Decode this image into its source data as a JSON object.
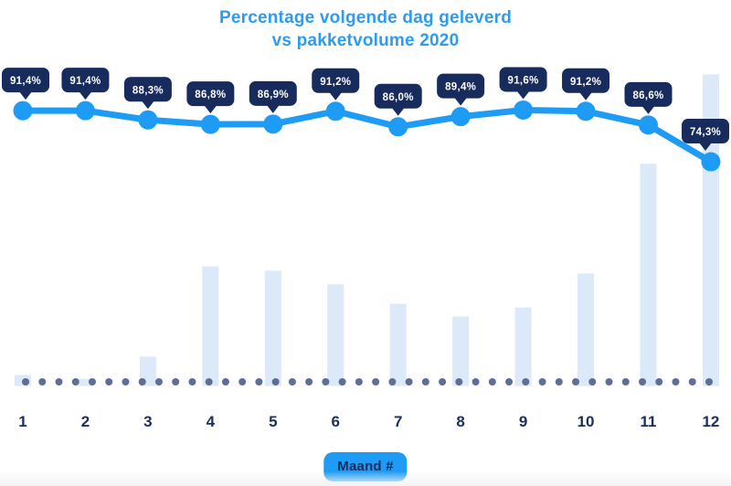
{
  "title_lines": [
    "Percentage volgende dag geleverd",
    "vs pakketvolume 2020"
  ],
  "chart_data": {
    "type": "combo",
    "title": "Percentage volgende dag geleverd vs pakketvolume 2020",
    "title_lines": [
      "Percentage volgende dag geleverd",
      "vs pakketvolume 2020"
    ],
    "categories": [
      "1",
      "2",
      "3",
      "4",
      "5",
      "6",
      "7",
      "8",
      "9",
      "10",
      "11",
      "12"
    ],
    "xlabel": "Maand #",
    "ylabel": "",
    "grid": false,
    "legend": "none",
    "series": [
      {
        "name": "Percentage volgende dag geleverd",
        "type": "line",
        "unit": "%",
        "axis_range": [
          0,
          100
        ],
        "values": [
          91.4,
          91.4,
          88.3,
          86.8,
          86.9,
          91.2,
          86.0,
          89.4,
          91.6,
          91.2,
          86.6,
          74.3
        ],
        "labels": [
          "91,4%",
          "91,4%",
          "88,3%",
          "86,8%",
          "86,9%",
          "91,2%",
          "86,0%",
          "89,4%",
          "91,6%",
          "91,2%",
          "86,6%",
          "74,3%"
        ],
        "color": "#1e9cf5",
        "badge_color": "#172b5d",
        "badge_text_color": "#ffffff"
      },
      {
        "name": "Pakketvolume 2020",
        "type": "bar",
        "unit": "relative index (% of max month)",
        "values": [
          3.5,
          2.3,
          9.4,
          38.4,
          37.0,
          32.6,
          26.4,
          22.3,
          25.2,
          36.1,
          71.3,
          100
        ],
        "color": "#dbe9f8"
      }
    ],
    "baseline": {
      "style": "dotted",
      "color": "#5d6f96",
      "meaning": "x-axis / 0%-line"
    }
  },
  "colors": {
    "title_blue": "#2b9cf2",
    "accent_blue": "#1e9cf5",
    "navy": "#172b5d",
    "axis_label_navy": "#1b2f63",
    "bar_light_blue": "#dbe9f8",
    "dot_slate": "#5d6f96",
    "background": "#ffffff"
  }
}
